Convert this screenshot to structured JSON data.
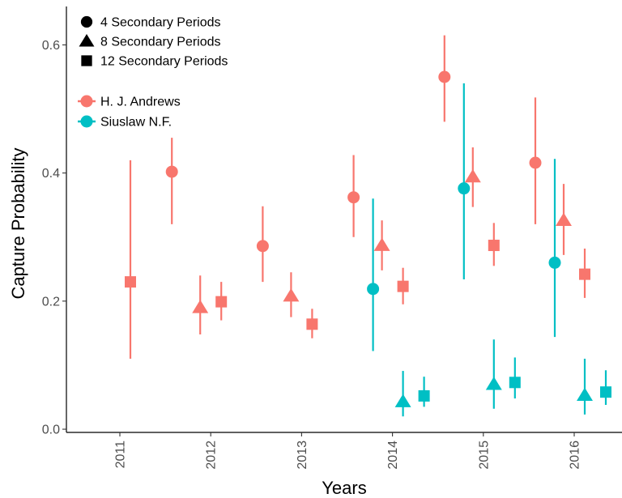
{
  "chart_data": {
    "type": "scatter",
    "xlabel": "Years",
    "ylabel": "Capture Probability",
    "categories": [
      "2011",
      "2012",
      "2013",
      "2014",
      "2015",
      "2016"
    ],
    "ylim": [
      -0.005,
      0.66
    ],
    "yticks": [
      0.0,
      0.2,
      0.4,
      0.6
    ],
    "ytick_labels": [
      "0.0",
      "0.2",
      "0.4",
      "0.6"
    ],
    "grid": false,
    "shape_legend": {
      "entries": [
        {
          "shape": "circle",
          "label": "4 Secondary Periods"
        },
        {
          "shape": "triangle",
          "label": "8 Secondary Periods"
        },
        {
          "shape": "square",
          "label": "12 Secondary Periods"
        }
      ]
    },
    "color_legend": {
      "entries": [
        {
          "name": "H. J. Andrews",
          "color": "#F8766D"
        },
        {
          "name": "Siuslaw N.F.",
          "color": "#00BFC4"
        }
      ]
    },
    "series": [
      {
        "name": "H. J. Andrews",
        "color": "#F8766D",
        "points": [
          {
            "year": "2011",
            "periods": 12,
            "shape": "square",
            "y": 0.23,
            "lo": 0.11,
            "hi": 0.42
          },
          {
            "year": "2012",
            "periods": 4,
            "shape": "circle",
            "y": 0.402,
            "lo": 0.32,
            "hi": 0.455
          },
          {
            "year": "2012",
            "periods": 8,
            "shape": "triangle",
            "y": 0.19,
            "lo": 0.148,
            "hi": 0.24
          },
          {
            "year": "2012",
            "periods": 12,
            "shape": "square",
            "y": 0.199,
            "lo": 0.17,
            "hi": 0.23
          },
          {
            "year": "2013",
            "periods": 4,
            "shape": "circle",
            "y": 0.286,
            "lo": 0.23,
            "hi": 0.348
          },
          {
            "year": "2013",
            "periods": 8,
            "shape": "triangle",
            "y": 0.208,
            "lo": 0.175,
            "hi": 0.245
          },
          {
            "year": "2013",
            "periods": 12,
            "shape": "square",
            "y": 0.164,
            "lo": 0.142,
            "hi": 0.188
          },
          {
            "year": "2014",
            "periods": 4,
            "shape": "circle",
            "y": 0.362,
            "lo": 0.3,
            "hi": 0.428
          },
          {
            "year": "2014",
            "periods": 8,
            "shape": "triangle",
            "y": 0.287,
            "lo": 0.248,
            "hi": 0.326
          },
          {
            "year": "2014",
            "periods": 12,
            "shape": "square",
            "y": 0.223,
            "lo": 0.195,
            "hi": 0.252
          },
          {
            "year": "2015",
            "periods": 4,
            "shape": "circle",
            "y": 0.55,
            "lo": 0.48,
            "hi": 0.615
          },
          {
            "year": "2015",
            "periods": 8,
            "shape": "triangle",
            "y": 0.394,
            "lo": 0.347,
            "hi": 0.44
          },
          {
            "year": "2015",
            "periods": 12,
            "shape": "square",
            "y": 0.287,
            "lo": 0.255,
            "hi": 0.322
          },
          {
            "year": "2016",
            "periods": 4,
            "shape": "circle",
            "y": 0.416,
            "lo": 0.32,
            "hi": 0.518
          },
          {
            "year": "2016",
            "periods": 8,
            "shape": "triangle",
            "y": 0.326,
            "lo": 0.272,
            "hi": 0.383
          },
          {
            "year": "2016",
            "periods": 12,
            "shape": "square",
            "y": 0.242,
            "lo": 0.205,
            "hi": 0.282
          }
        ]
      },
      {
        "name": "Siuslaw N.F.",
        "color": "#00BFC4",
        "points": [
          {
            "year": "2014",
            "periods": 4,
            "shape": "circle",
            "y": 0.219,
            "lo": 0.122,
            "hi": 0.36
          },
          {
            "year": "2014",
            "periods": 8,
            "shape": "triangle",
            "y": 0.043,
            "lo": 0.02,
            "hi": 0.091
          },
          {
            "year": "2014",
            "periods": 12,
            "shape": "square",
            "y": 0.052,
            "lo": 0.035,
            "hi": 0.082
          },
          {
            "year": "2015",
            "periods": 4,
            "shape": "circle",
            "y": 0.376,
            "lo": 0.234,
            "hi": 0.54
          },
          {
            "year": "2015",
            "periods": 8,
            "shape": "triangle",
            "y": 0.07,
            "lo": 0.032,
            "hi": 0.14
          },
          {
            "year": "2015",
            "periods": 12,
            "shape": "square",
            "y": 0.073,
            "lo": 0.048,
            "hi": 0.112
          },
          {
            "year": "2016",
            "periods": 4,
            "shape": "circle",
            "y": 0.26,
            "lo": 0.144,
            "hi": 0.422
          },
          {
            "year": "2016",
            "periods": 8,
            "shape": "triangle",
            "y": 0.053,
            "lo": 0.023,
            "hi": 0.11
          },
          {
            "year": "2016",
            "periods": 12,
            "shape": "square",
            "y": 0.058,
            "lo": 0.038,
            "hi": 0.092
          }
        ]
      }
    ]
  }
}
